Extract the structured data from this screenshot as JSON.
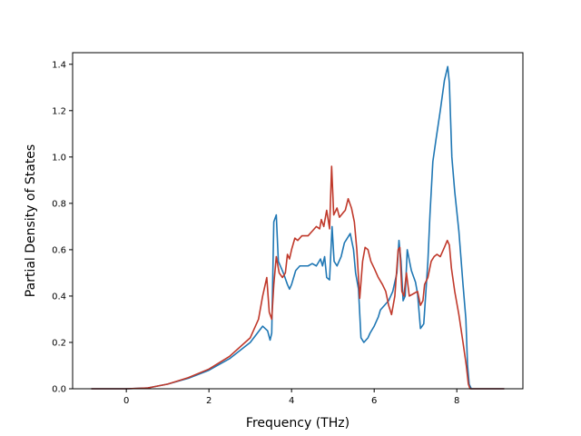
{
  "chart_data": {
    "type": "line",
    "title": "",
    "xlabel": "Frequency (THz)",
    "ylabel": "Partial Density of States",
    "xlim": [
      -1.3,
      9.6
    ],
    "ylim": [
      0.0,
      1.45
    ],
    "xticks": [
      0,
      2,
      4,
      6,
      8
    ],
    "yticks": [
      0.0,
      0.2,
      0.4,
      0.6,
      0.8,
      1.0,
      1.2,
      1.4
    ],
    "xtick_labels": [
      "0",
      "2",
      "4",
      "6",
      "8"
    ],
    "ytick_labels": [
      "0.0",
      "0.2",
      "0.4",
      "0.6",
      "0.8",
      "1.0",
      "1.2",
      "1.4"
    ],
    "grid": false,
    "legend": "none",
    "series": [
      {
        "color": "#1f77b4",
        "points": [
          [
            -0.85,
            0.0
          ],
          [
            0.0,
            0.0
          ],
          [
            0.5,
            0.003
          ],
          [
            1.0,
            0.02
          ],
          [
            1.5,
            0.045
          ],
          [
            2.0,
            0.08
          ],
          [
            2.5,
            0.13
          ],
          [
            3.0,
            0.2
          ],
          [
            3.3,
            0.27
          ],
          [
            3.42,
            0.25
          ],
          [
            3.48,
            0.21
          ],
          [
            3.52,
            0.24
          ],
          [
            3.57,
            0.72
          ],
          [
            3.63,
            0.75
          ],
          [
            3.68,
            0.55
          ],
          [
            3.8,
            0.5
          ],
          [
            3.9,
            0.45
          ],
          [
            3.95,
            0.43
          ],
          [
            4.0,
            0.45
          ],
          [
            4.1,
            0.51
          ],
          [
            4.2,
            0.53
          ],
          [
            4.4,
            0.53
          ],
          [
            4.5,
            0.54
          ],
          [
            4.6,
            0.53
          ],
          [
            4.7,
            0.56
          ],
          [
            4.75,
            0.53
          ],
          [
            4.8,
            0.57
          ],
          [
            4.85,
            0.48
          ],
          [
            4.92,
            0.47
          ],
          [
            4.98,
            0.7
          ],
          [
            5.03,
            0.55
          ],
          [
            5.1,
            0.53
          ],
          [
            5.2,
            0.57
          ],
          [
            5.28,
            0.63
          ],
          [
            5.35,
            0.65
          ],
          [
            5.42,
            0.67
          ],
          [
            5.5,
            0.6
          ],
          [
            5.55,
            0.5
          ],
          [
            5.62,
            0.43
          ],
          [
            5.68,
            0.22
          ],
          [
            5.75,
            0.2
          ],
          [
            5.85,
            0.22
          ],
          [
            5.9,
            0.24
          ],
          [
            6.0,
            0.27
          ],
          [
            6.1,
            0.31
          ],
          [
            6.15,
            0.34
          ],
          [
            6.25,
            0.36
          ],
          [
            6.35,
            0.38
          ],
          [
            6.45,
            0.42
          ],
          [
            6.55,
            0.5
          ],
          [
            6.6,
            0.64
          ],
          [
            6.65,
            0.55
          ],
          [
            6.7,
            0.38
          ],
          [
            6.75,
            0.4
          ],
          [
            6.8,
            0.6
          ],
          [
            6.9,
            0.51
          ],
          [
            7.0,
            0.46
          ],
          [
            7.05,
            0.41
          ],
          [
            7.12,
            0.26
          ],
          [
            7.2,
            0.28
          ],
          [
            7.3,
            0.55
          ],
          [
            7.35,
            0.75
          ],
          [
            7.42,
            0.98
          ],
          [
            7.5,
            1.08
          ],
          [
            7.6,
            1.2
          ],
          [
            7.7,
            1.33
          ],
          [
            7.78,
            1.39
          ],
          [
            7.82,
            1.32
          ],
          [
            7.88,
            1.0
          ],
          [
            7.95,
            0.85
          ],
          [
            8.05,
            0.68
          ],
          [
            8.15,
            0.45
          ],
          [
            8.22,
            0.3
          ],
          [
            8.26,
            0.1
          ],
          [
            8.3,
            0.02
          ],
          [
            8.35,
            0.0
          ],
          [
            9.15,
            0.0
          ]
        ]
      },
      {
        "color": "#c0392b",
        "points": [
          [
            -0.85,
            0.0
          ],
          [
            0.0,
            0.0
          ],
          [
            0.5,
            0.003
          ],
          [
            1.0,
            0.02
          ],
          [
            1.5,
            0.048
          ],
          [
            2.0,
            0.085
          ],
          [
            2.5,
            0.14
          ],
          [
            3.0,
            0.22
          ],
          [
            3.2,
            0.3
          ],
          [
            3.3,
            0.4
          ],
          [
            3.4,
            0.48
          ],
          [
            3.46,
            0.33
          ],
          [
            3.52,
            0.3
          ],
          [
            3.57,
            0.45
          ],
          [
            3.63,
            0.57
          ],
          [
            3.7,
            0.5
          ],
          [
            3.78,
            0.48
          ],
          [
            3.85,
            0.5
          ],
          [
            3.9,
            0.58
          ],
          [
            3.95,
            0.56
          ],
          [
            4.0,
            0.6
          ],
          [
            4.08,
            0.65
          ],
          [
            4.15,
            0.64
          ],
          [
            4.25,
            0.66
          ],
          [
            4.4,
            0.66
          ],
          [
            4.5,
            0.68
          ],
          [
            4.6,
            0.7
          ],
          [
            4.68,
            0.69
          ],
          [
            4.72,
            0.73
          ],
          [
            4.78,
            0.7
          ],
          [
            4.85,
            0.77
          ],
          [
            4.92,
            0.69
          ],
          [
            4.97,
            0.96
          ],
          [
            5.02,
            0.75
          ],
          [
            5.1,
            0.78
          ],
          [
            5.16,
            0.74
          ],
          [
            5.25,
            0.76
          ],
          [
            5.3,
            0.77
          ],
          [
            5.37,
            0.82
          ],
          [
            5.45,
            0.78
          ],
          [
            5.52,
            0.72
          ],
          [
            5.58,
            0.6
          ],
          [
            5.65,
            0.39
          ],
          [
            5.72,
            0.55
          ],
          [
            5.78,
            0.61
          ],
          [
            5.85,
            0.6
          ],
          [
            5.92,
            0.55
          ],
          [
            6.0,
            0.52
          ],
          [
            6.1,
            0.48
          ],
          [
            6.2,
            0.45
          ],
          [
            6.28,
            0.42
          ],
          [
            6.35,
            0.36
          ],
          [
            6.42,
            0.32
          ],
          [
            6.5,
            0.4
          ],
          [
            6.58,
            0.6
          ],
          [
            6.62,
            0.61
          ],
          [
            6.67,
            0.42
          ],
          [
            6.72,
            0.4
          ],
          [
            6.78,
            0.5
          ],
          [
            6.85,
            0.4
          ],
          [
            6.95,
            0.41
          ],
          [
            7.05,
            0.42
          ],
          [
            7.12,
            0.36
          ],
          [
            7.18,
            0.38
          ],
          [
            7.22,
            0.45
          ],
          [
            7.3,
            0.48
          ],
          [
            7.38,
            0.55
          ],
          [
            7.45,
            0.57
          ],
          [
            7.52,
            0.58
          ],
          [
            7.6,
            0.57
          ],
          [
            7.7,
            0.61
          ],
          [
            7.77,
            0.64
          ],
          [
            7.82,
            0.62
          ],
          [
            7.87,
            0.52
          ],
          [
            7.95,
            0.42
          ],
          [
            8.05,
            0.32
          ],
          [
            8.15,
            0.2
          ],
          [
            8.23,
            0.1
          ],
          [
            8.28,
            0.02
          ],
          [
            8.32,
            0.0
          ],
          [
            9.15,
            0.0
          ]
        ]
      }
    ]
  }
}
